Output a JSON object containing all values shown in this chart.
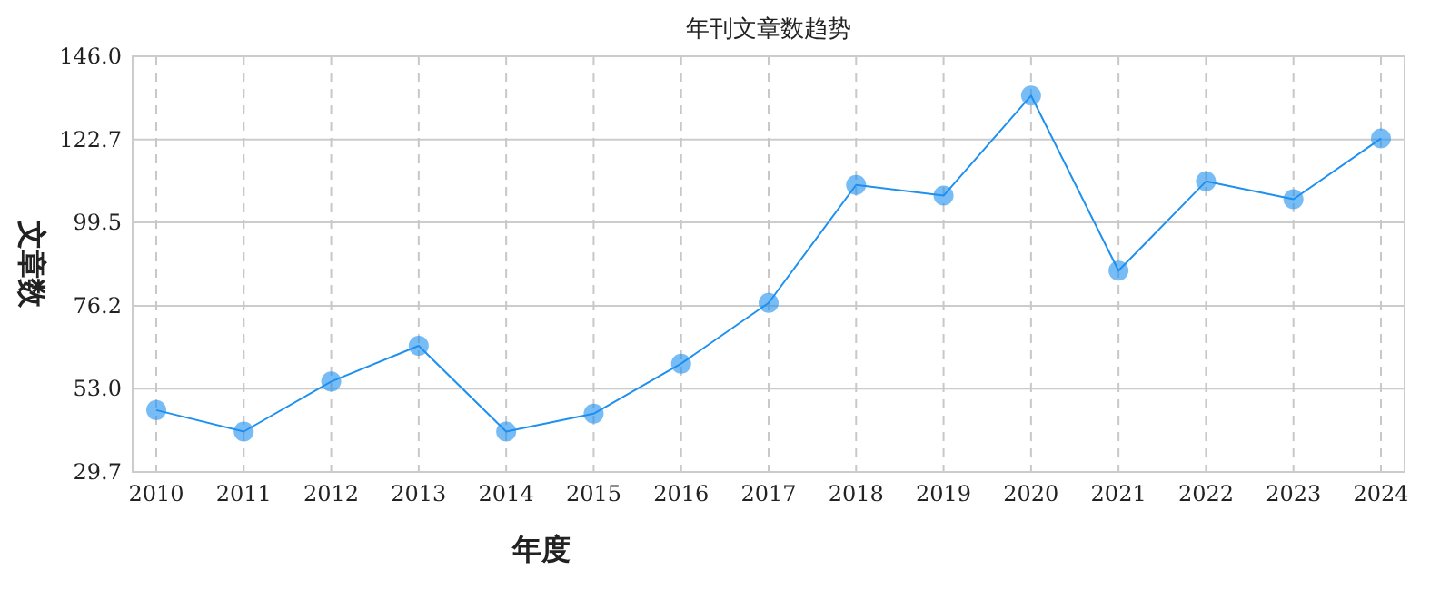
{
  "chart_data": {
    "type": "line",
    "title": "年刊文章数趋势",
    "xlabel": "年度",
    "ylabel": "文章数",
    "categories": [
      "2010",
      "2011",
      "2012",
      "2013",
      "2014",
      "2015",
      "2016",
      "2017",
      "2018",
      "2019",
      "2020",
      "2021",
      "2022",
      "2023",
      "2024"
    ],
    "series": [
      {
        "color": "#1e90f0",
        "values": [
          47,
          41,
          55,
          65,
          41,
          46,
          60,
          77,
          110,
          107,
          135,
          86,
          111,
          106,
          123
        ]
      }
    ],
    "ylim": [
      29.7,
      146.0
    ],
    "yticks": [
      {
        "value": 29.7,
        "label": "29.7"
      },
      {
        "value": 53.0,
        "label": "53.0"
      },
      {
        "value": 76.2,
        "label": "76.2"
      },
      {
        "value": 99.5,
        "label": "99.5"
      },
      {
        "value": 122.7,
        "label": "122.7"
      },
      {
        "value": 146.0,
        "label": "146.0"
      }
    ],
    "grid": true,
    "marker": "circle",
    "line_style": "solid"
  }
}
